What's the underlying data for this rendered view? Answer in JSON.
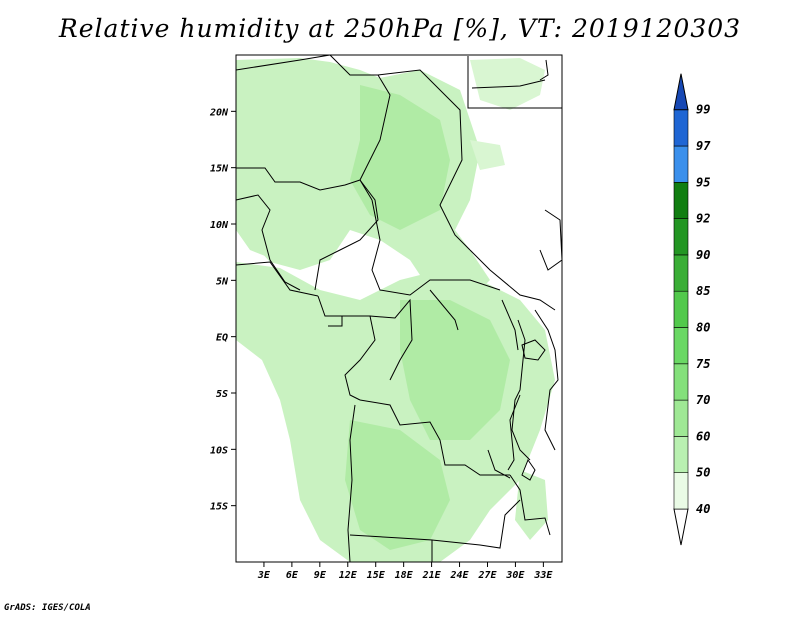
{
  "title": "Relative humidity at 250hPa [%], VT: 2019120303",
  "credit": "GrADS: IGES/COLA",
  "map": {
    "lon_range": [
      0,
      35
    ],
    "lat_range": [
      -20,
      25
    ],
    "lat_ticks": [
      "20N",
      "15N",
      "10N",
      "5N",
      "EQ",
      "5S",
      "10S",
      "15S"
    ],
    "lon_ticks": [
      "3E",
      "6E",
      "9E",
      "12E",
      "15E",
      "18E",
      "21E",
      "24E",
      "27E",
      "30E",
      "33E"
    ]
  },
  "colorbar": {
    "labels": [
      "40",
      "50",
      "60",
      "70",
      "75",
      "80",
      "85",
      "90",
      "92",
      "95",
      "97",
      "99"
    ],
    "colors": [
      "#eafbe6",
      "#d2f6cc",
      "#b9f0b1",
      "#9fe895",
      "#84e07b",
      "#6ad864",
      "#52c94c",
      "#3aae36",
      "#239623",
      "#117e11",
      "#3b90ec",
      "#1f66d4",
      "#1748b4"
    ]
  }
}
